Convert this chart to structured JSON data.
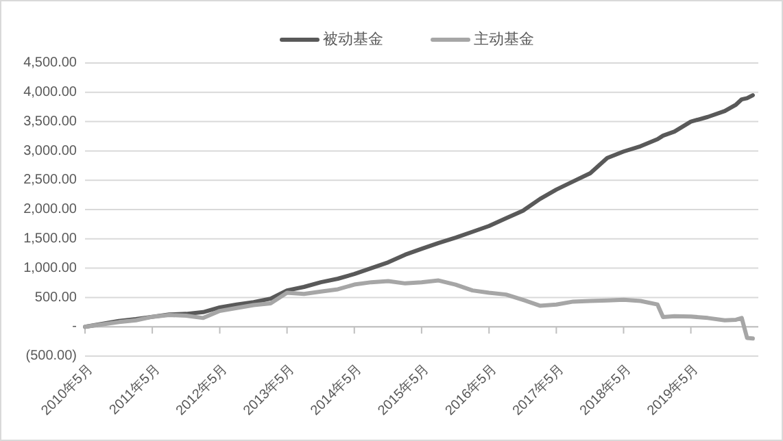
{
  "chart_data": {
    "type": "line",
    "x": [
      "2010-05",
      "2010-08",
      "2010-11",
      "2011-02",
      "2011-05",
      "2011-08",
      "2011-11",
      "2012-02",
      "2012-05",
      "2012-08",
      "2012-11",
      "2013-02",
      "2013-05",
      "2013-08",
      "2013-11",
      "2014-02",
      "2014-05",
      "2014-08",
      "2014-11",
      "2015-02",
      "2015-05",
      "2015-08",
      "2015-11",
      "2016-02",
      "2016-05",
      "2016-08",
      "2016-11",
      "2017-02",
      "2017-05",
      "2017-08",
      "2017-11",
      "2018-02",
      "2018-05",
      "2018-08",
      "2018-11",
      "2018-12",
      "2019-02",
      "2019-05",
      "2019-08",
      "2019-11",
      "2020-01",
      "2020-02",
      "2020-03",
      "2020-04"
    ],
    "series": [
      {
        "name": "被动基金",
        "color": "#595959",
        "values": [
          0,
          50,
          100,
          130,
          170,
          210,
          220,
          250,
          330,
          380,
          420,
          480,
          620,
          680,
          760,
          820,
          900,
          1000,
          1100,
          1230,
          1330,
          1430,
          1520,
          1620,
          1720,
          1850,
          1980,
          2180,
          2340,
          2480,
          2620,
          2880,
          2990,
          3080,
          3200,
          3260,
          3330,
          3500,
          3580,
          3680,
          3790,
          3880,
          3900,
          3950
        ]
      },
      {
        "name": "主动基金",
        "color": "#a6a6a6",
        "values": [
          0,
          40,
          80,
          110,
          170,
          200,
          190,
          150,
          270,
          320,
          370,
          400,
          580,
          560,
          600,
          640,
          720,
          760,
          780,
          740,
          760,
          790,
          720,
          620,
          580,
          550,
          460,
          360,
          380,
          430,
          440,
          450,
          460,
          440,
          380,
          165,
          180,
          175,
          150,
          110,
          120,
          150,
          -190,
          -200
        ]
      }
    ],
    "xlim": [
      "2010-05",
      "2020-05"
    ],
    "xticks": [
      {
        "value": "2010-05",
        "label": "2010年5月"
      },
      {
        "value": "2011-05",
        "label": "2011年5月"
      },
      {
        "value": "2012-05",
        "label": "2012年5月"
      },
      {
        "value": "2013-05",
        "label": "2013年5月"
      },
      {
        "value": "2014-05",
        "label": "2014年5月"
      },
      {
        "value": "2015-05",
        "label": "2015年5月"
      },
      {
        "value": "2016-05",
        "label": "2016年5月"
      },
      {
        "value": "2017-05",
        "label": "2017年5月"
      },
      {
        "value": "2018-05",
        "label": "2018年5月"
      },
      {
        "value": "2019-05",
        "label": "2019年5月"
      }
    ],
    "ylim": [
      -500,
      4500
    ],
    "yticks": [
      {
        "value": -500,
        "label": "(500.00)"
      },
      {
        "value": 0,
        "label": "-"
      },
      {
        "value": 500,
        "label": "500.00"
      },
      {
        "value": 1000,
        "label": "1,000.00"
      },
      {
        "value": 1500,
        "label": "1,500.00"
      },
      {
        "value": 2000,
        "label": "2,000.00"
      },
      {
        "value": 2500,
        "label": "2,500.00"
      },
      {
        "value": 3000,
        "label": "3,000.00"
      },
      {
        "value": 3500,
        "label": "3,500.00"
      },
      {
        "value": 4000,
        "label": "4,000.00"
      },
      {
        "value": 4500,
        "label": "4,500.00"
      }
    ],
    "grid": "y",
    "legend": "top",
    "line_style": "solid",
    "marker": "none"
  }
}
